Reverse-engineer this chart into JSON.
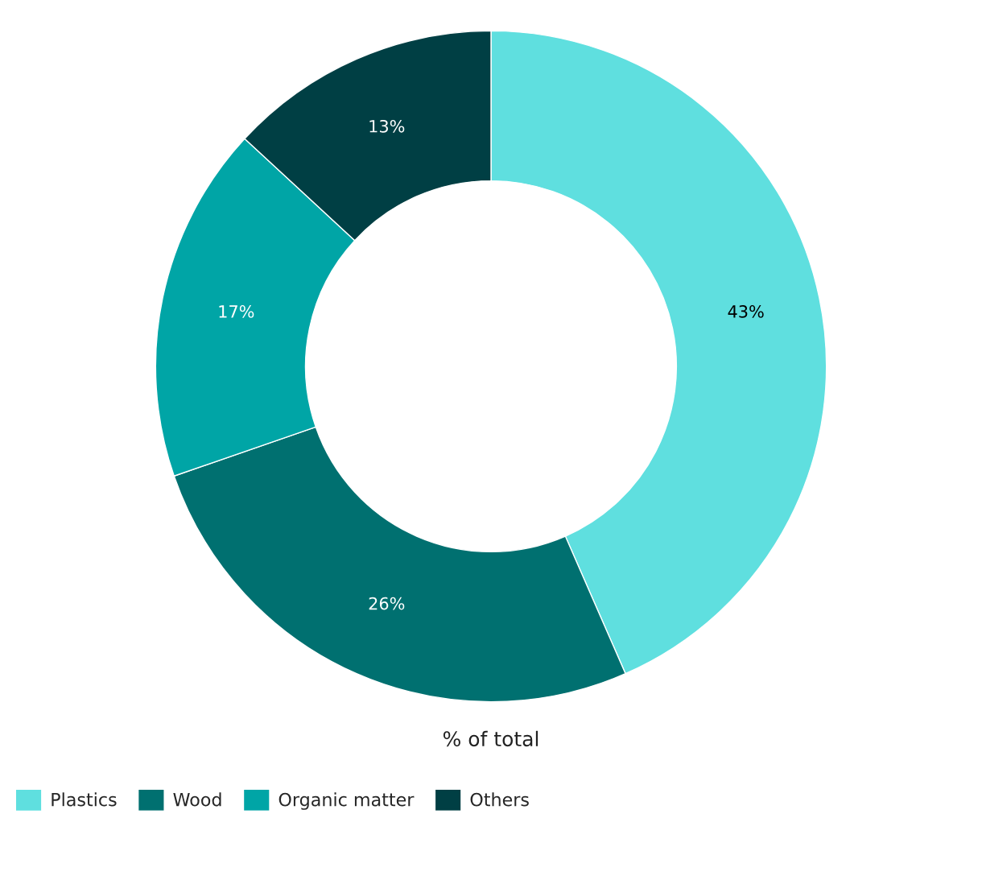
{
  "chart_data": {
    "type": "donut",
    "categories": [
      "Plastics",
      "Wood",
      "Organic matter",
      "Others"
    ],
    "values": [
      43,
      26,
      17,
      13
    ],
    "colors": [
      "#5fdfdf",
      "#007070",
      "#00a5a6",
      "#003f44"
    ],
    "value_labels": [
      "43%",
      "26%",
      "17%",
      "13%"
    ],
    "xlabel": "% of total",
    "legend": "bottom left"
  }
}
